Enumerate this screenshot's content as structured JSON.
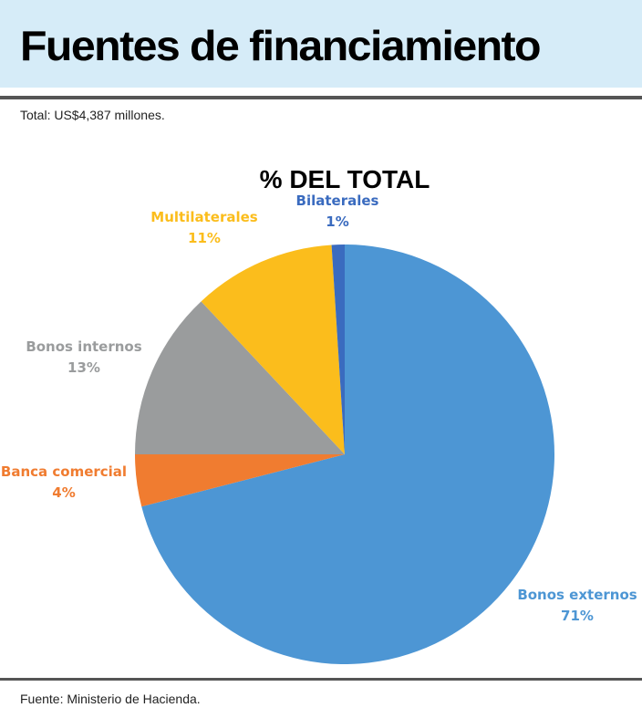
{
  "header": {
    "title": "Fuentes de financiamiento",
    "subtitle": "Total: US$4,387 millones."
  },
  "chart_data": {
    "type": "pie",
    "title": "% DEL TOTAL",
    "categories": [
      "Bonos externos",
      "Banca comercial",
      "Bonos internos",
      "Multilaterales",
      "Bilaterales"
    ],
    "values": [
      71,
      4,
      13,
      11,
      1
    ],
    "value_labels": [
      "71%",
      "4%",
      "13%",
      "11%",
      "1%"
    ],
    "colors": [
      "#4d96d4",
      "#f07c30",
      "#9a9c9d",
      "#fbbd1c",
      "#3a6bbf"
    ]
  },
  "footer": {
    "source": "Fuente: Ministerio de Hacienda."
  }
}
